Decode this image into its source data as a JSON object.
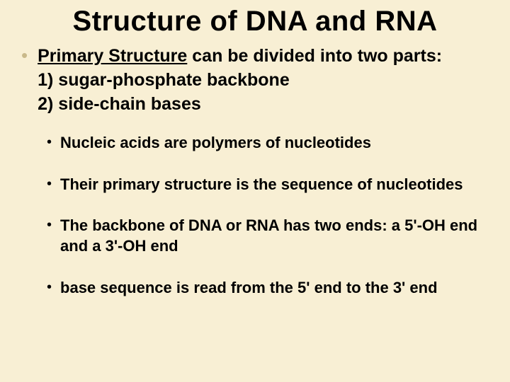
{
  "background_color": "#f8efd4",
  "title": "Structure of DNA and RNA",
  "title_fontsize": 40,
  "main_bullet_color": "#c9b98a",
  "sub_bullet_color": "#000000",
  "text_color": "#000000",
  "main": {
    "lead_underlined": "Primary Structure",
    "lead_rest": " can be divided into two parts:",
    "line1": "1) sugar-phosphate backbone",
    "line2": "2) side-chain bases"
  },
  "sub_items": [
    "Nucleic acids are polymers of nucleotides",
    "Their primary structure is the sequence of nucleotides",
    "The backbone of DNA or RNA has two ends: a 5'-OH end and a 3'-OH end",
    "base sequence is read from the 5' end to the 3' end"
  ]
}
